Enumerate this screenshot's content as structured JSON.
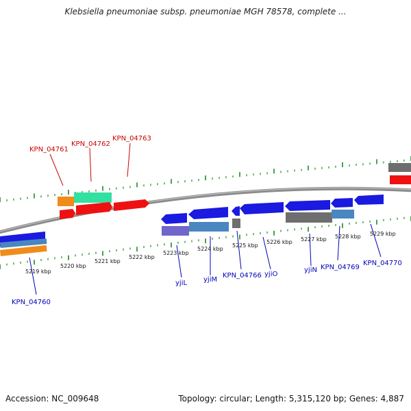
{
  "title": "Klebsiella pneumoniae subsp. pneumoniae MGH 78578, complete ...",
  "footer": {
    "accession": "Accession: NC_009648",
    "summary": "Topology: circular; Length: 5,315,120 bp; Genes: 4,887"
  },
  "colors": {
    "backbone": "#8c8c8c",
    "tick": "#1a8a1a",
    "label_red": "#cc0000",
    "label_blue": "#0000bb",
    "gene_blue": "#1a1ae0",
    "gene_red": "#ee1111",
    "gene_orange": "#f08c1a",
    "gene_green": "#33e0a0",
    "gene_gray": "#6e6e6e",
    "gene_steel": "#4a86c0",
    "gene_purple": "#7066cc"
  },
  "kbp_ticks": [
    "5219 kbp",
    "5220 kbp",
    "5221 kbp",
    "5222 kbp",
    "5223 kbp",
    "5224 kbp",
    "5225 kbp",
    "5226 kbp",
    "5227 kbp",
    "5228 kbp",
    "5229 kbp"
  ],
  "features": [
    {
      "id": "KPN_04760",
      "strand": "minus"
    },
    {
      "id": "KPN_04761",
      "strand": "plus"
    },
    {
      "id": "KPN_04762",
      "strand": "plus"
    },
    {
      "id": "KPN_04763",
      "strand": "plus"
    },
    {
      "id": "yjiL",
      "strand": "minus"
    },
    {
      "id": "yjiM",
      "strand": "minus"
    },
    {
      "id": "KPN_04766",
      "strand": "minus"
    },
    {
      "id": "yjiO",
      "strand": "minus"
    },
    {
      "id": "yjiN",
      "strand": "minus"
    },
    {
      "id": "KPN_04769",
      "strand": "minus"
    },
    {
      "id": "KPN_04770",
      "strand": "minus"
    }
  ]
}
